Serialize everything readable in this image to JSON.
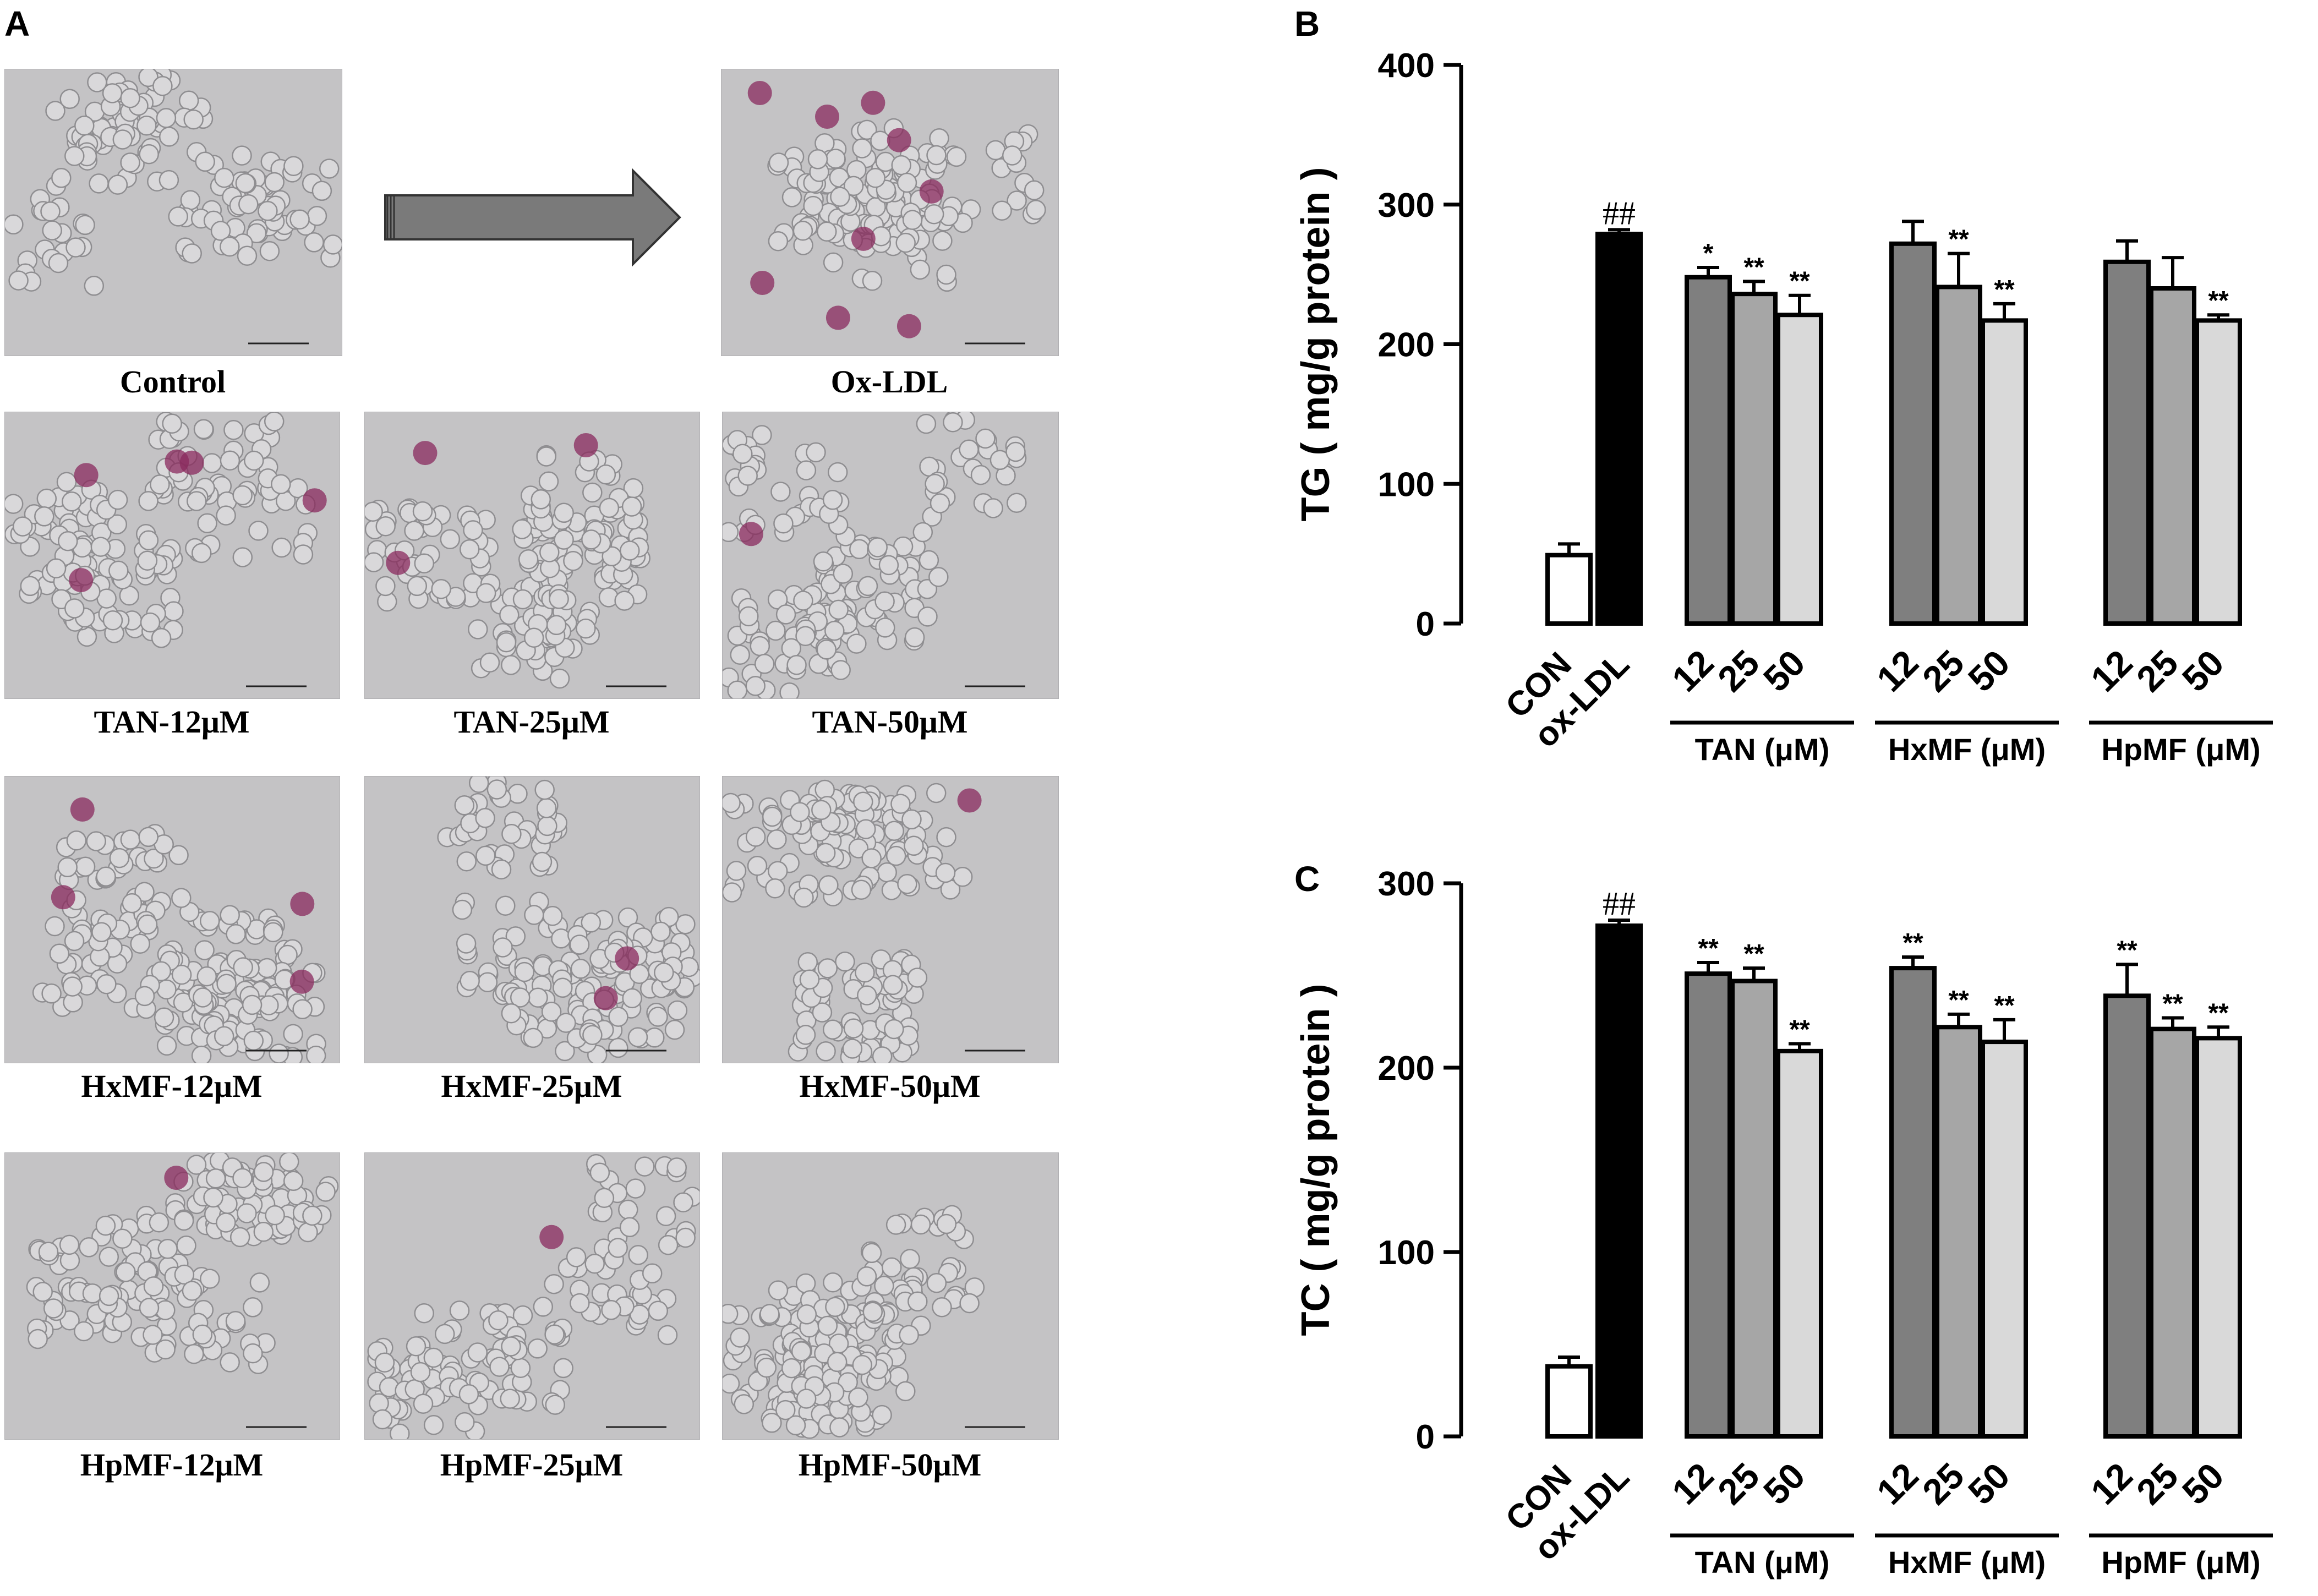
{
  "panels": {
    "a": "A",
    "b": "B",
    "c": "C"
  },
  "micrographs": [
    {
      "label": "Control",
      "stain": 0
    },
    {
      "label": "Ox-LDL",
      "stain": 9
    },
    {
      "label": "TAN-12μM",
      "stain": 5
    },
    {
      "label": "TAN-25μM",
      "stain": 3
    },
    {
      "label": "TAN-50μM",
      "stain": 1
    },
    {
      "label": "HxMF-12μM",
      "stain": 4
    },
    {
      "label": "HxMF-25μM",
      "stain": 2
    },
    {
      "label": "HxMF-50μM",
      "stain": 1
    },
    {
      "label": "HpMF-12μM",
      "stain": 1
    },
    {
      "label": "HpMF-25μM",
      "stain": 1
    },
    {
      "label": "HpMF-50μM",
      "stain": 0
    }
  ],
  "colors": {
    "con": "#ffffff",
    "oxldl": "#000000",
    "dose12": "#7f7f7f",
    "dose25": "#a6a6a6",
    "dose50": "#d9d9d9",
    "arrow": "#7a7a7a",
    "stain": "#8a2a5e"
  },
  "chart_data": [
    {
      "type": "bar",
      "panel": "B",
      "ylabel": "TG ( mg/g protein )",
      "ylim": [
        0,
        400
      ],
      "yticks": [
        0,
        100,
        200,
        300,
        400
      ],
      "categories": [
        "CON",
        "ox-LDL",
        "12",
        "25",
        "50",
        "12",
        "25",
        "50",
        "12",
        "25",
        "50"
      ],
      "groups": [
        "TAN (μM)",
        "HxMF (μM)",
        "HpMF (μM)"
      ],
      "values": [
        49,
        279,
        248,
        236,
        221,
        272,
        241,
        217,
        259,
        240,
        217
      ],
      "errors": [
        8,
        3,
        7,
        9,
        14,
        16,
        24,
        12,
        15,
        22,
        4
      ],
      "annotations": [
        "",
        "##",
        "*",
        "**",
        "**",
        "",
        "**",
        "**",
        "",
        "",
        "**"
      ]
    },
    {
      "type": "bar",
      "panel": "C",
      "ylabel": "TC ( mg/g protein )",
      "ylim": [
        0,
        300
      ],
      "yticks": [
        0,
        100,
        200,
        300
      ],
      "categories": [
        "CON",
        "ox-LDL",
        "12",
        "25",
        "50",
        "12",
        "25",
        "50",
        "12",
        "25",
        "50"
      ],
      "groups": [
        "TAN (μM)",
        "HxMF (μM)",
        "HpMF (μM)"
      ],
      "values": [
        38,
        277,
        251,
        247,
        209,
        254,
        222,
        214,
        239,
        221,
        216
      ],
      "errors": [
        5,
        3,
        6,
        7,
        4,
        6,
        7,
        12,
        17,
        6,
        6
      ],
      "annotations": [
        "",
        "##",
        "**",
        "**",
        "**",
        "**",
        "**",
        "**",
        "**",
        "**",
        "**"
      ]
    }
  ]
}
